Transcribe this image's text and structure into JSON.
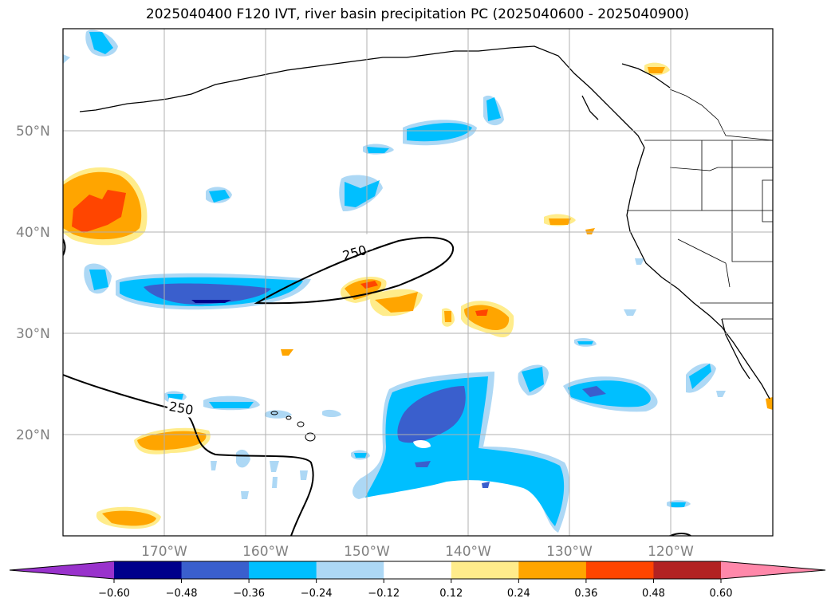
{
  "title": "2025040400 F120 IVT, river basin precipitation PC (2025040600 - 2025040900)",
  "map": {
    "projection": "PlateCarree",
    "lon_range_deg": [
      -180,
      -110
    ],
    "lat_range_deg": [
      10,
      60
    ],
    "gridlines": true,
    "lat_ticks": [
      "20°N",
      "30°N",
      "40°N",
      "50°N"
    ],
    "lon_ticks": [
      "170°W",
      "160°W",
      "150°W",
      "140°W",
      "130°W",
      "120°W"
    ],
    "contour_label": "250",
    "contour_level": 250
  },
  "colorbar": {
    "orientation": "horizontal",
    "extend": "both",
    "tick_labels": [
      "−0.60",
      "−0.48",
      "−0.36",
      "−0.24",
      "−0.12",
      "0.12",
      "0.24",
      "0.36",
      "0.48",
      "0.60"
    ],
    "colors": [
      "#9932CC",
      "#00008B",
      "#3A5FCD",
      "#00BFFF",
      "#ADD8F5",
      "#FFFFFF",
      "#FFEC8B",
      "#FFA500",
      "#FF4500",
      "#B22222",
      "#FF88AA"
    ]
  }
}
